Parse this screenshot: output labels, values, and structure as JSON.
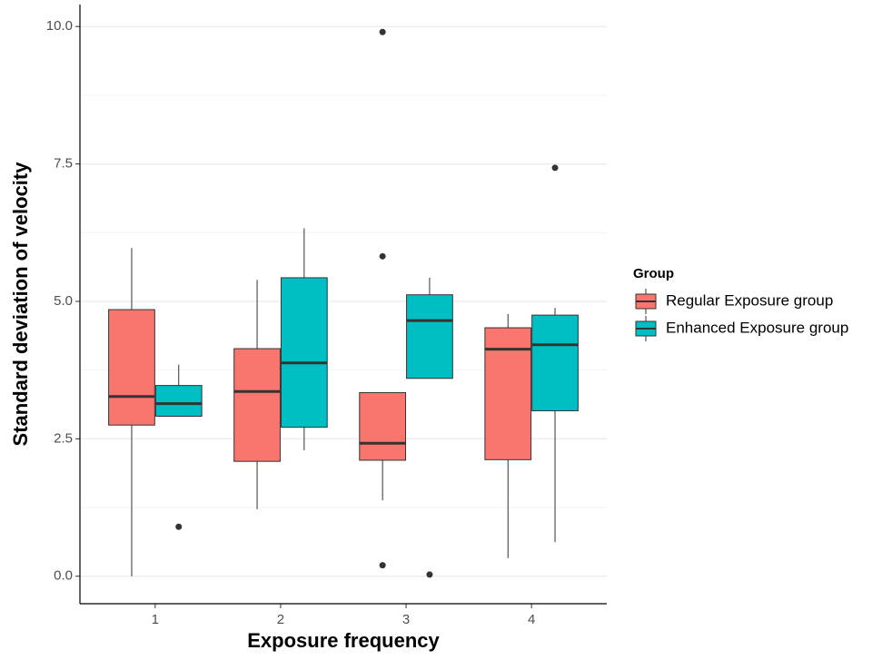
{
  "chart_data": {
    "type": "boxplot",
    "x_label": "Exposure frequency",
    "y_label": "Standard deviation of velocity",
    "categories": [
      "1",
      "2",
      "3",
      "4"
    ],
    "ylim": [
      -0.5,
      10.4
    ],
    "yticks": [
      {
        "value": 0,
        "label": "0.0"
      },
      {
        "value": 2.5,
        "label": "2.5"
      },
      {
        "value": 5,
        "label": "5.0"
      },
      {
        "value": 7.5,
        "label": "7.5"
      },
      {
        "value": 10,
        "label": "10.0"
      }
    ],
    "grid": true,
    "legend_title": "Group",
    "legend_position": "right",
    "series": [
      {
        "name": "Regular Exposure group",
        "color": "#f8766d",
        "boxes": [
          {
            "min": 0.0,
            "q1": 2.75,
            "median": 3.27,
            "q3": 4.85,
            "max": 5.97,
            "outliers": []
          },
          {
            "min": 1.22,
            "q1": 2.09,
            "median": 3.36,
            "q3": 4.14,
            "max": 5.39,
            "outliers": []
          },
          {
            "min": 1.38,
            "q1": 2.11,
            "median": 2.42,
            "q3": 3.34,
            "max": 3.34,
            "outliers": [
              9.9,
              5.82,
              0.2
            ]
          },
          {
            "min": 0.33,
            "q1": 2.12,
            "median": 4.13,
            "q3": 4.52,
            "max": 4.77,
            "outliers": []
          }
        ]
      },
      {
        "name": "Enhanced Exposure group",
        "color": "#00bfc4",
        "boxes": [
          {
            "min": 2.91,
            "q1": 2.91,
            "median": 3.14,
            "q3": 3.47,
            "max": 3.85,
            "outliers": [
              0.9
            ]
          },
          {
            "min": 2.29,
            "q1": 2.71,
            "median": 3.88,
            "q3": 5.43,
            "max": 6.33,
            "outliers": []
          },
          {
            "min": 3.6,
            "q1": 3.6,
            "median": 4.65,
            "q3": 5.12,
            "max": 5.43,
            "outliers": [
              0.03
            ]
          },
          {
            "min": 0.62,
            "q1": 3.01,
            "median": 4.21,
            "q3": 4.75,
            "max": 4.88,
            "outliers": [
              7.43
            ]
          }
        ]
      }
    ]
  }
}
